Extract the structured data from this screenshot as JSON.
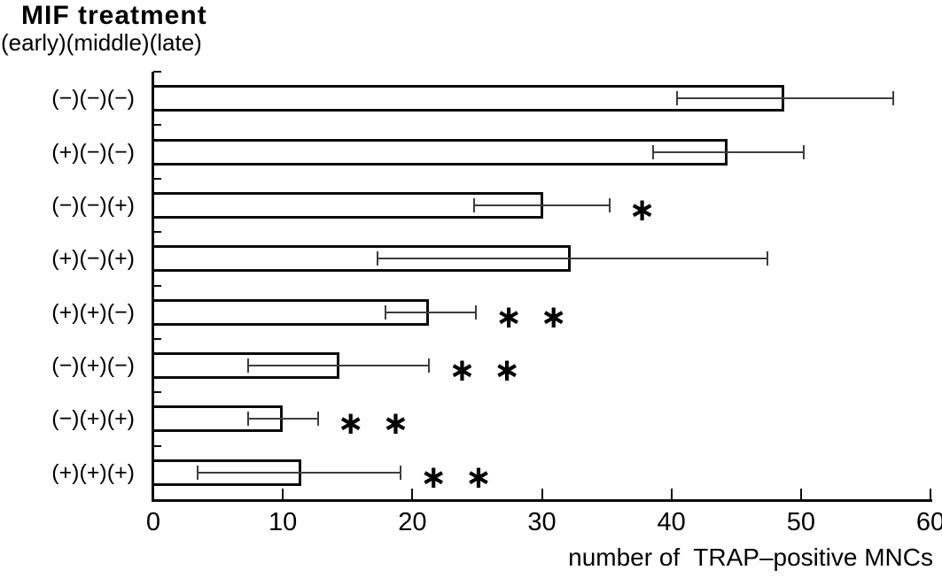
{
  "title": "MIF treatment",
  "subtitle": "(early)(middle)(late)",
  "chart_data": {
    "type": "bar",
    "orientation": "horizontal",
    "title": "MIF treatment",
    "subtitle": "(early)(middle)(late)",
    "categories": [
      "(−)(−)(−)",
      "(+)(−)(−)",
      "(−)(−)(+)",
      "(+)(−)(+)",
      "(+)(+)(−)",
      "(−)(+)(−)",
      "(−)(+)(+)",
      "(+)(+)(+)"
    ],
    "values": [
      48.7,
      44.3,
      30.1,
      32.2,
      21.3,
      14.4,
      10.0,
      11.4
    ],
    "error_low": [
      40.4,
      38.6,
      24.8,
      17.3,
      17.9,
      7.3,
      7.3,
      3.4
    ],
    "error_high": [
      57.1,
      50.2,
      35.2,
      47.4,
      24.9,
      21.3,
      12.7,
      19.1
    ],
    "significance": [
      "",
      "",
      "*",
      "",
      "**",
      "**",
      "**",
      "**"
    ],
    "sig_symbol": "∗",
    "xlabel": "number of  TRAP–positive MNCs",
    "ylabel": "",
    "xlim": [
      0,
      60
    ],
    "x_ticks": [
      0,
      10,
      20,
      30,
      40,
      50,
      60
    ],
    "grid": false,
    "legend": "none",
    "bar_fill": "#ffffff",
    "bar_border": "#0a0a0a",
    "error_color": "#3d3d3d",
    "background": "#ffffff"
  }
}
